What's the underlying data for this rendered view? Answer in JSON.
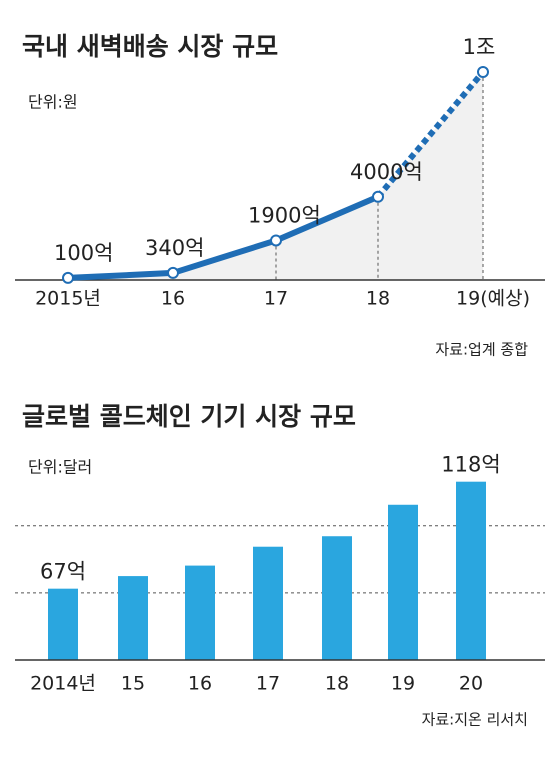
{
  "chart_data": [
    {
      "type": "line",
      "title": "국내 새벽배송 시장 규모",
      "subtitle": "단위:원",
      "categories": [
        "2015년",
        "16",
        "17",
        "18",
        "19(예상)"
      ],
      "values": [
        100,
        340,
        1900,
        4000,
        10000
      ],
      "value_labels": [
        "100억",
        "340억",
        "1900억",
        "4000억",
        "1조"
      ],
      "color": "#1f6db5",
      "ylim": [
        0,
        10000
      ],
      "source": "자료:업계 종합"
    },
    {
      "type": "bar",
      "title": "글로벌 콜드체인 기기 시장 규모",
      "subtitle": "단위:달러",
      "categories": [
        "2014년",
        "15",
        "16",
        "17",
        "18",
        "19",
        "20"
      ],
      "values": [
        67,
        73,
        78,
        87,
        92,
        107,
        118
      ],
      "value_labels": [
        "67억",
        null,
        null,
        null,
        null,
        null,
        "118억"
      ],
      "color": "#2aa6df",
      "ylim": [
        33,
        125
      ],
      "gridlines": [
        65,
        97
      ],
      "source": "자료:지온 리서치"
    }
  ]
}
